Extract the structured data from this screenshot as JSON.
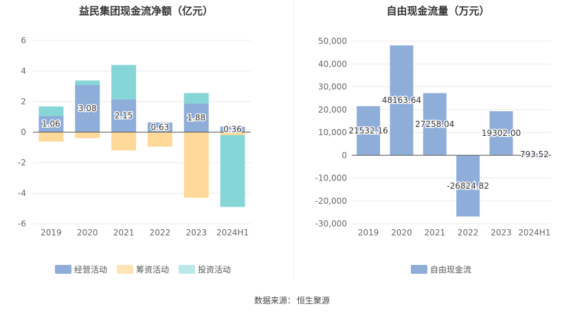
{
  "source": {
    "label": "数据来源：",
    "value": "恒生聚源"
  },
  "colors": {
    "operating": "#8eadd9",
    "financing": "#fed999",
    "investing": "#86d6d8",
    "free_cash_flow": "#8eadd9"
  },
  "chart_data": [
    {
      "type": "bar",
      "stacked": true,
      "title": "益民集团现金流净额（亿元）",
      "categories": [
        "2019",
        "2020",
        "2021",
        "2022",
        "2023",
        "2024H1"
      ],
      "ylim": [
        -6,
        6
      ],
      "yticks": [
        6,
        4,
        2,
        0,
        -2,
        -4,
        -6
      ],
      "legend_position": "bottom",
      "series": [
        {
          "name": "经营活动",
          "values": [
            1.06,
            3.08,
            2.15,
            0.63,
            1.88,
            0.36
          ],
          "labels": [
            "1.06",
            "3.08",
            "2.15",
            "0.63",
            "1.88",
            "0.36"
          ]
        },
        {
          "name": "筹资活动",
          "values": [
            -0.62,
            -0.4,
            -1.2,
            -0.95,
            -4.3,
            -0.2
          ]
        },
        {
          "name": "投资活动",
          "values": [
            0.62,
            0.3,
            2.25,
            0,
            0.68,
            -4.7
          ]
        }
      ]
    },
    {
      "type": "bar",
      "title": "自由现金流量（万元）",
      "categories": [
        "2019",
        "2020",
        "2021",
        "2022",
        "2023",
        "2024H1"
      ],
      "ylim": [
        -30000,
        50000
      ],
      "yticks": [
        "50,000",
        "40,000",
        "30,000",
        "20,000",
        "10,000",
        "0",
        "-10,000",
        "-20,000",
        "-30,000"
      ],
      "legend_position": "bottom",
      "series": [
        {
          "name": "自由现金流",
          "values": [
            21532.16,
            48163.64,
            27258.04,
            -26824.82,
            19302.0,
            793.52
          ],
          "labels": [
            "21532.16",
            "48163.64",
            "27258.04",
            "-26824.82",
            "19302.00",
            "793.52"
          ]
        }
      ]
    }
  ]
}
